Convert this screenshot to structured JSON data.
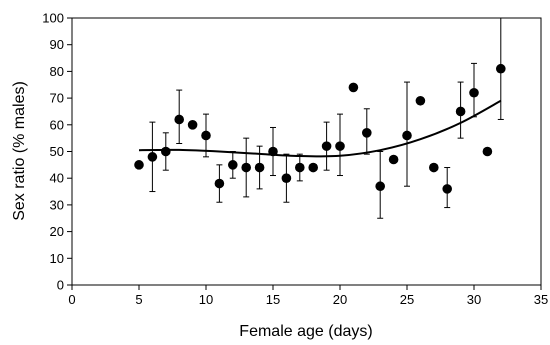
{
  "chart_data": {
    "type": "scatter",
    "xlabel": "Female age (days)",
    "ylabel": "Sex ratio (% males)",
    "xlim": [
      0,
      35
    ],
    "ylim": [
      0,
      100
    ],
    "x_ticks": [
      0,
      5,
      10,
      15,
      20,
      25,
      30,
      35
    ],
    "y_ticks": [
      0,
      10,
      20,
      30,
      40,
      50,
      60,
      70,
      80,
      90,
      100
    ],
    "grid": false,
    "legend": "none",
    "points": [
      {
        "x": 5,
        "y": 45,
        "err": null
      },
      {
        "x": 6,
        "y": 48,
        "err": [
          35,
          61
        ]
      },
      {
        "x": 7,
        "y": 50,
        "err": [
          43,
          57
        ]
      },
      {
        "x": 8,
        "y": 62,
        "err": [
          53,
          73
        ]
      },
      {
        "x": 9,
        "y": 60,
        "err": null
      },
      {
        "x": 10,
        "y": 56,
        "err": [
          48,
          64
        ]
      },
      {
        "x": 11,
        "y": 38,
        "err": [
          31,
          45
        ]
      },
      {
        "x": 12,
        "y": 45,
        "err": [
          40,
          50
        ]
      },
      {
        "x": 13,
        "y": 44,
        "err": [
          33,
          55
        ]
      },
      {
        "x": 14,
        "y": 44,
        "err": [
          36,
          52
        ]
      },
      {
        "x": 15,
        "y": 50,
        "err": [
          41,
          59
        ]
      },
      {
        "x": 16,
        "y": 40,
        "err": [
          31,
          49
        ]
      },
      {
        "x": 17,
        "y": 44,
        "err": [
          39,
          49
        ]
      },
      {
        "x": 18,
        "y": 44,
        "err": null
      },
      {
        "x": 19,
        "y": 52,
        "err": [
          43,
          61
        ]
      },
      {
        "x": 20,
        "y": 52,
        "err": [
          41,
          64
        ]
      },
      {
        "x": 21,
        "y": 74,
        "err": null
      },
      {
        "x": 22,
        "y": 57,
        "err": [
          49,
          66
        ]
      },
      {
        "x": 23,
        "y": 37,
        "err": [
          25,
          50
        ]
      },
      {
        "x": 24,
        "y": 47,
        "err": null
      },
      {
        "x": 25,
        "y": 56,
        "err": [
          37,
          76
        ]
      },
      {
        "x": 26,
        "y": 69,
        "err": null
      },
      {
        "x": 27,
        "y": 44,
        "err": null
      },
      {
        "x": 28,
        "y": 36,
        "err": [
          29,
          44
        ]
      },
      {
        "x": 29,
        "y": 65,
        "err": [
          55,
          76
        ]
      },
      {
        "x": 30,
        "y": 72,
        "err": [
          63,
          83
        ]
      },
      {
        "x": 31,
        "y": 50,
        "err": null
      },
      {
        "x": 32,
        "y": 81,
        "err": [
          62,
          100
        ]
      }
    ],
    "trend_line": {
      "type": "polynomial",
      "x": [
        5,
        8,
        11,
        14,
        17,
        20,
        23,
        26,
        29,
        32
      ],
      "y": [
        50.5,
        50.6,
        50.0,
        49.1,
        48.3,
        48.4,
        50.5,
        54.6,
        60.7,
        69.0
      ]
    }
  }
}
